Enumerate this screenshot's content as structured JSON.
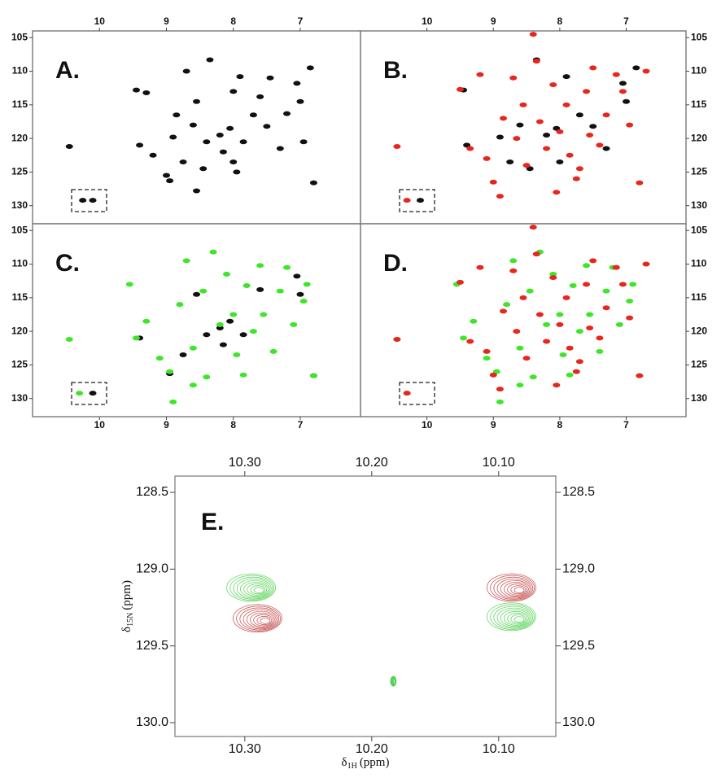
{
  "chart_data": [
    {
      "type": "scatter",
      "label": "A.",
      "xlim": [
        11,
        6.1
      ],
      "ylim": [
        104,
        132.7
      ],
      "xticks": [
        10,
        9,
        8,
        7
      ],
      "yticks": [
        105,
        110,
        115,
        120,
        125,
        130
      ],
      "x_tick_sides": [
        "top"
      ],
      "y_tick_sides": [
        "left"
      ],
      "grid": false,
      "series": [
        {
          "color": "#111111",
          "x": [
            10.45,
            10.25,
            10.1,
            9.45,
            9.3,
            9.4,
            9.0,
            8.95,
            8.9,
            8.85,
            8.75,
            8.7,
            8.6,
            8.55,
            8.45,
            8.4,
            8.35,
            8.2,
            8.15,
            8.05,
            8.0,
            7.95,
            7.9,
            7.85,
            7.7,
            7.6,
            7.5,
            7.45,
            7.3,
            7.2,
            7.05,
            7.0,
            6.95,
            6.85,
            6.8,
            8.55,
            9.2,
            8.0
          ],
          "values": [
            121.2,
            129.2,
            129.2,
            112.8,
            113.2,
            121,
            125.5,
            126.3,
            119.8,
            116.5,
            123.5,
            110,
            118,
            114.5,
            124.5,
            120.5,
            108.3,
            119.5,
            122,
            118.5,
            113,
            125,
            110.8,
            120.5,
            116.5,
            113.8,
            118.2,
            111,
            121.5,
            116.3,
            111.8,
            114.5,
            120.5,
            109.5,
            126.6,
            127.8,
            122.5,
            123.5
          ]
        }
      ]
    },
    {
      "type": "scatter",
      "label": "B.",
      "xlim": [
        11,
        6.1
      ],
      "ylim": [
        104,
        132.7
      ],
      "xticks": [
        10,
        9,
        8,
        7
      ],
      "yticks": [
        105,
        110,
        115,
        120,
        125,
        130
      ],
      "x_tick_sides": [
        "top"
      ],
      "y_tick_sides": [
        "right"
      ],
      "grid": false,
      "series": [
        {
          "color": "#111111",
          "x": [
            10.1,
            9.45,
            9.4,
            8.9,
            8.75,
            8.6,
            8.45,
            8.35,
            8.2,
            8.05,
            7.9,
            7.7,
            7.5,
            7.3,
            7.05,
            7.0,
            6.85,
            8.0
          ],
          "values": [
            129.2,
            112.8,
            121,
            119.8,
            123.5,
            118,
            124.5,
            108.3,
            119.5,
            118.5,
            110.8,
            116.5,
            118.2,
            121.5,
            111.8,
            114.5,
            109.5,
            123.5
          ]
        },
        {
          "color": "#e8261e",
          "x": [
            10.45,
            10.3,
            9.5,
            9.35,
            9.1,
            9.0,
            8.9,
            8.85,
            8.7,
            8.65,
            8.55,
            8.5,
            8.4,
            8.35,
            8.3,
            8.2,
            8.1,
            8.0,
            7.9,
            7.85,
            7.75,
            7.6,
            7.55,
            7.5,
            7.4,
            7.3,
            7.15,
            7.05,
            6.95,
            6.8,
            6.7,
            8.05,
            9.2,
            7.7
          ],
          "values": [
            121.2,
            129.2,
            112.7,
            121.5,
            123,
            126.5,
            128.6,
            117,
            111,
            120,
            115,
            124,
            104.5,
            108.5,
            117.5,
            121.5,
            112,
            119,
            115,
            122.5,
            126,
            113,
            119.5,
            109.5,
            121,
            116.5,
            110.5,
            113,
            118,
            126.6,
            110,
            128,
            110.5,
            124.5
          ]
        }
      ]
    },
    {
      "type": "scatter",
      "label": "C.",
      "xlim": [
        11,
        6.1
      ],
      "ylim": [
        104,
        132.7
      ],
      "xticks": [
        10,
        9,
        8,
        7
      ],
      "yticks": [
        105,
        110,
        115,
        120,
        125,
        130
      ],
      "x_tick_sides": [
        "bottom"
      ],
      "y_tick_sides": [
        "left"
      ],
      "grid": false,
      "series": [
        {
          "color": "#111111",
          "x": [
            10.1,
            9.4,
            8.95,
            8.75,
            8.55,
            8.4,
            8.2,
            8.15,
            8.05,
            7.85,
            7.6,
            7.05,
            7.0,
            6.8
          ],
          "values": [
            129.2,
            121,
            126.3,
            123.5,
            114.5,
            120.5,
            119.5,
            122,
            118.5,
            120.5,
            113.8,
            111.8,
            114.5,
            126.6
          ]
        },
        {
          "color": "#3ee62a",
          "x": [
            10.45,
            10.3,
            9.55,
            9.45,
            9.1,
            8.95,
            8.9,
            8.8,
            8.7,
            8.6,
            8.45,
            8.4,
            8.3,
            8.2,
            8.1,
            8.0,
            7.95,
            7.8,
            7.7,
            7.6,
            7.55,
            7.4,
            7.3,
            7.2,
            7.1,
            6.95,
            6.9,
            6.8,
            7.85,
            9.3,
            8.6
          ],
          "values": [
            121.2,
            129.2,
            113,
            121,
            124,
            126,
            130.5,
            116,
            109.5,
            122.5,
            114,
            126.8,
            108.2,
            119,
            111.5,
            117.5,
            123.5,
            113.2,
            120,
            110.2,
            117.5,
            123,
            114,
            110.5,
            119,
            115.5,
            113,
            126.6,
            126.5,
            118.5,
            128
          ]
        }
      ]
    },
    {
      "type": "scatter",
      "label": "D.",
      "xlim": [
        11,
        6.1
      ],
      "ylim": [
        104,
        132.7
      ],
      "xticks": [
        10,
        9,
        8,
        7
      ],
      "yticks": [
        105,
        110,
        115,
        120,
        125,
        130
      ],
      "x_tick_sides": [
        "bottom"
      ],
      "y_tick_sides": [
        "right"
      ],
      "grid": false,
      "series": [
        {
          "color": "#3ee62a",
          "x": [
            10.45,
            10.3,
            9.55,
            9.45,
            9.1,
            8.95,
            8.9,
            8.8,
            8.7,
            8.6,
            8.45,
            8.4,
            8.3,
            8.2,
            8.1,
            8.0,
            7.95,
            7.8,
            7.7,
            7.6,
            7.55,
            7.4,
            7.3,
            7.2,
            7.1,
            6.95,
            6.9,
            6.8,
            7.85,
            9.3,
            8.6
          ],
          "values": [
            121.2,
            129.2,
            113,
            121,
            124,
            126,
            130.5,
            116,
            109.5,
            122.5,
            114,
            126.8,
            108.2,
            119,
            111.5,
            117.5,
            123.5,
            113.2,
            120,
            110.2,
            117.5,
            123,
            114,
            110.5,
            119,
            115.5,
            113,
            126.6,
            126.5,
            118.5,
            128
          ]
        },
        {
          "color": "#e8261e",
          "x": [
            10.45,
            10.3,
            9.5,
            9.35,
            9.1,
            9.0,
            8.9,
            8.85,
            8.7,
            8.65,
            8.55,
            8.5,
            8.4,
            8.35,
            8.3,
            8.2,
            8.1,
            8.0,
            7.9,
            7.85,
            7.75,
            7.6,
            7.55,
            7.5,
            7.4,
            7.3,
            7.15,
            7.05,
            6.95,
            6.8,
            6.7,
            8.05,
            9.2,
            7.7
          ],
          "values": [
            121.2,
            129.2,
            112.7,
            121.5,
            123,
            126.5,
            128.6,
            117,
            111,
            120,
            115,
            124,
            104.5,
            108.5,
            117.5,
            121.5,
            112,
            119,
            115,
            122.5,
            126,
            113,
            119.5,
            109.5,
            121,
            116.5,
            110.5,
            113,
            118,
            126.6,
            110,
            128,
            110.5,
            124.5
          ]
        }
      ]
    },
    {
      "type": "contour",
      "label": "E.",
      "xlim": [
        10.355,
        10.055
      ],
      "ylim": [
        128.394,
        130.09
      ],
      "xticks": [
        {
          "value": 10.3,
          "label": "10.30"
        },
        {
          "value": 10.2,
          "label": "10.20"
        },
        {
          "value": 10.1,
          "label": "10.10"
        }
      ],
      "yticks": [
        128.5,
        {
          "value": 129,
          "label": "129.0"
        },
        129.5,
        {
          "value": 130,
          "label": "130.0"
        }
      ],
      "x_tick_sides": [
        "top",
        "bottom"
      ],
      "y_tick_sides": [
        "left",
        "right"
      ],
      "grid": false,
      "x_label": {
        "symbol": "δ",
        "subscript": "1H",
        "unit": "(ppm)"
      },
      "y_label": {
        "symbol": "δ",
        "subscript": "15N",
        "unit": "(ppm)"
      },
      "series": [
        {
          "color": "#4fcf4f",
          "x": [
            10.295,
            10.09
          ],
          "values": [
            129.12,
            129.31
          ]
        },
        {
          "color": "#c0403f",
          "x": [
            10.29,
            10.09
          ],
          "values": [
            129.32,
            129.12
          ]
        },
        {
          "color": "#4fcf4f",
          "x": [
            10.183
          ],
          "values": [
            129.73
          ]
        }
      ]
    }
  ]
}
